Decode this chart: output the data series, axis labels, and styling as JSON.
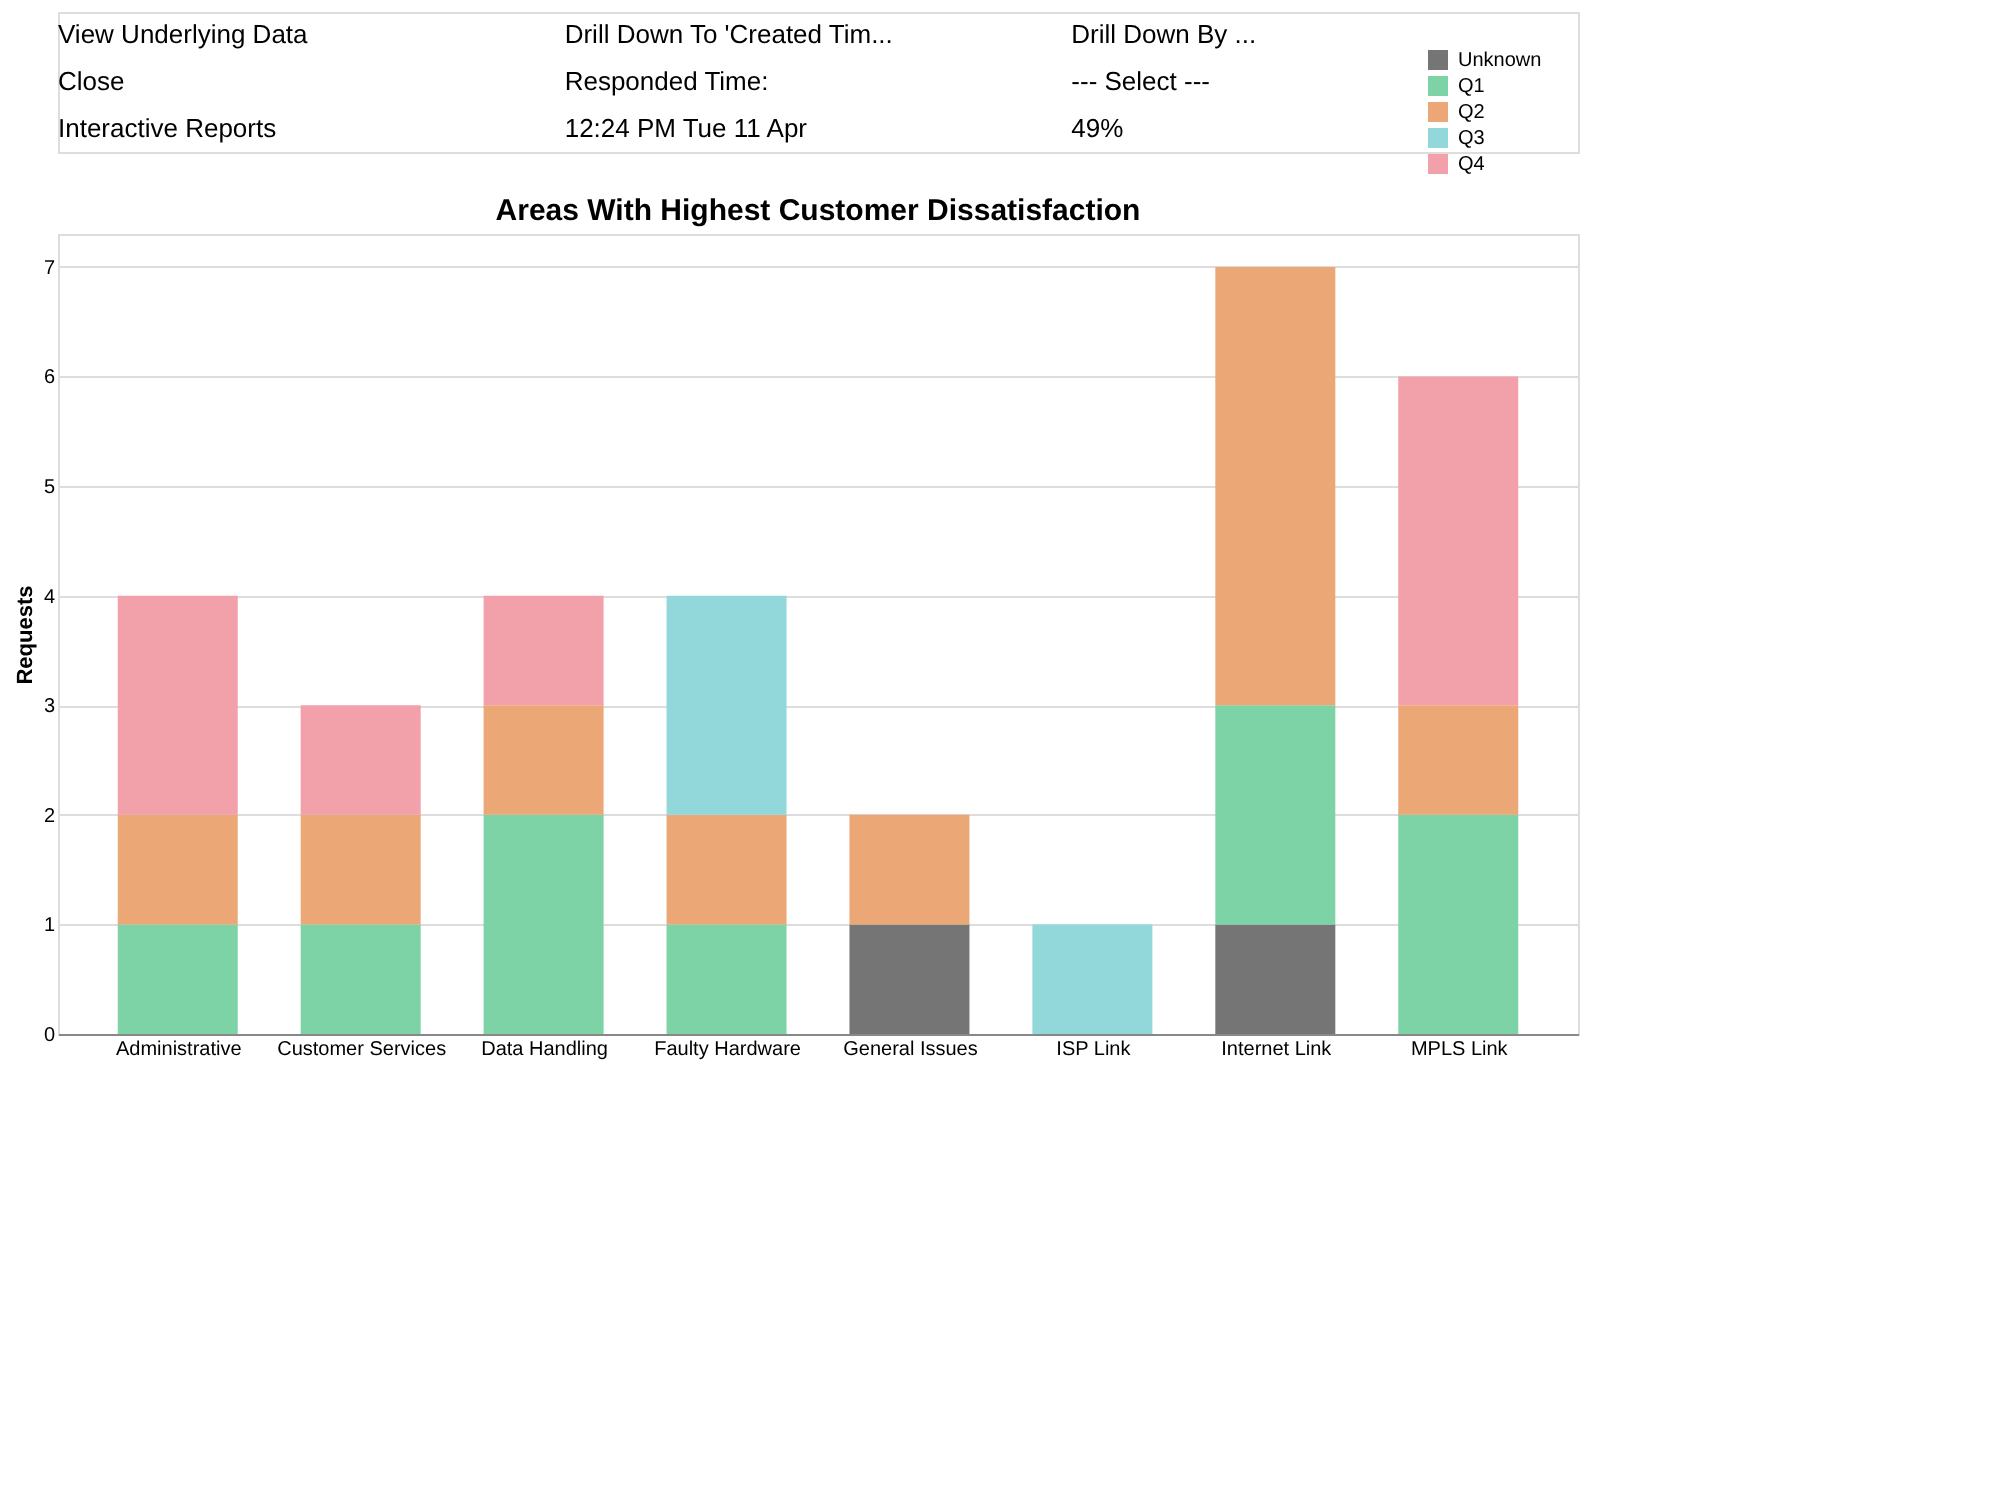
{
  "chart_data": {
    "type": "bar",
    "stacked": true,
    "title": "Areas With Highest Customer Dissatisfaction",
    "ylabel": "Requests",
    "categories": [
      "Administrative",
      "Customer Services",
      "Data Handling",
      "Faulty Hardware",
      "General Issues",
      "ISP Link",
      "Internet Link",
      "MPLS Link"
    ],
    "series": [
      {
        "name": "Unknown",
        "color": "#757575",
        "values": [
          null,
          null,
          null,
          null,
          1,
          null,
          1,
          null
        ]
      },
      {
        "name": "Q1",
        "color": "#7dd3a6",
        "values": [
          1,
          1,
          2,
          1,
          null,
          null,
          2,
          2
        ]
      },
      {
        "name": "Q2",
        "color": "#eba876",
        "values": [
          1,
          1,
          1,
          1,
          1,
          null,
          4,
          1
        ]
      },
      {
        "name": "Q3",
        "color": "#92d8db",
        "values": [
          null,
          null,
          null,
          2,
          null,
          1,
          null,
          null
        ]
      },
      {
        "name": "Q4",
        "color": "#f2a0a9",
        "values": [
          2,
          1,
          1,
          null,
          null,
          null,
          null,
          3
        ]
      }
    ],
    "ylim": [
      0,
      7.3
    ],
    "yticks": [
      0,
      1,
      2,
      3,
      4,
      5,
      6,
      7
    ],
    "grid": "y",
    "legend": "top right",
    "annotations": [
      "Interactive Reports",
      "12:24 PM  Tue 11 Apr",
      "49%",
      "Close",
      "Responded Time:",
      "--- Select ---",
      "View Underlying Data",
      "Drill Down To 'Created Tim...",
      "Drill Down By ..."
    ]
  }
}
